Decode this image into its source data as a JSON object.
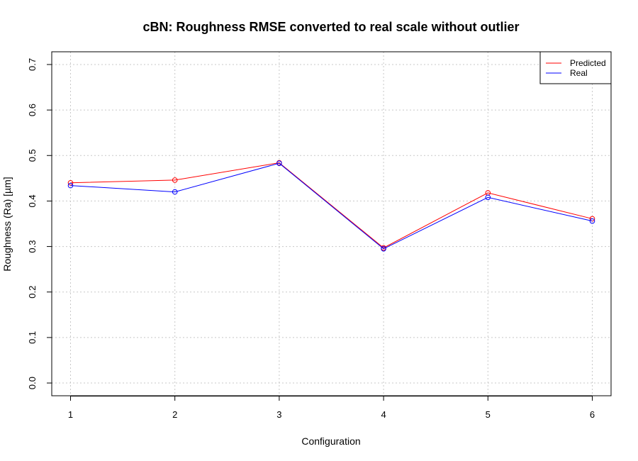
{
  "chart_data": {
    "type": "line",
    "title": "cBN: Roughness RMSE converted to real scale without outlier",
    "xlabel": "Configuration",
    "ylabel": "Roughness (Ra) [µm]",
    "x": [
      1,
      2,
      3,
      4,
      5,
      6
    ],
    "xlim": [
      0.82,
      6.18
    ],
    "ylim": [
      -0.028,
      0.728
    ],
    "xticks": [
      "1",
      "2",
      "3",
      "4",
      "5",
      "6"
    ],
    "yticks": [
      "0.0",
      "0.1",
      "0.2",
      "0.3",
      "0.4",
      "0.5",
      "0.6",
      "0.7"
    ],
    "grid": true,
    "legend_position": "top-right",
    "series": [
      {
        "name": "Predicted",
        "color": "#ff0000",
        "values": [
          0.44,
          0.446,
          0.484,
          0.297,
          0.418,
          0.361
        ]
      },
      {
        "name": "Real",
        "color": "#0000ff",
        "values": [
          0.434,
          0.42,
          0.483,
          0.295,
          0.408,
          0.356
        ]
      }
    ]
  }
}
